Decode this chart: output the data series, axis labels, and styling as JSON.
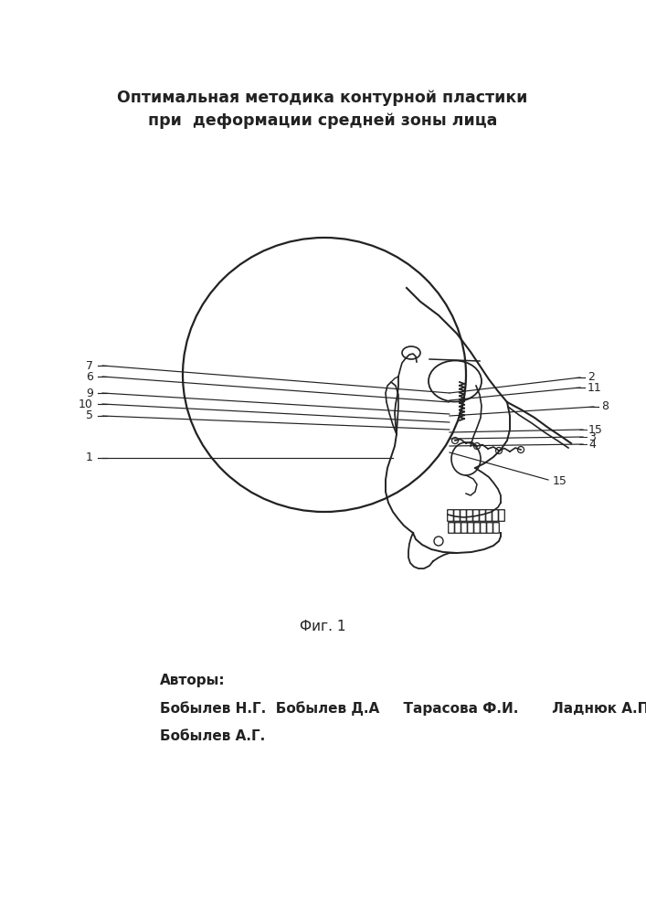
{
  "title_line1": "Оптимальная методика контурной пластики",
  "title_line2": "при  деформации средней зоны лица",
  "fig_label": "Фиг. 1",
  "authors_label": "Авторы:",
  "authors_line1": "Бобылев Н.Г.  Бобылев Д.А     Тарасова Ф.И.       Ладнюк А.П.",
  "authors_line2": "Бобылев А.Г.",
  "bg_color": "#ffffff",
  "line_color": "#222222",
  "text_color": "#222222",
  "title_fontsize": 12.5,
  "label_fontsize": 9,
  "fig_label_fontsize": 11,
  "authors_fontsize": 11
}
